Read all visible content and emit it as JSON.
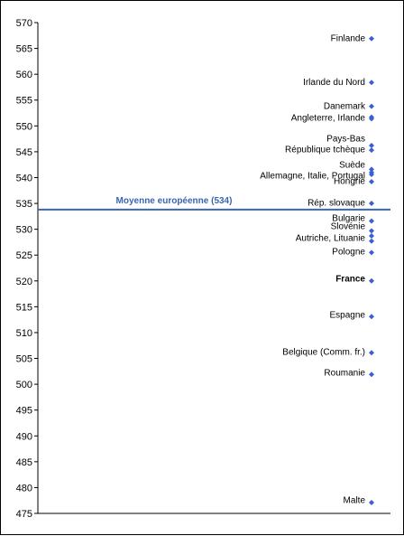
{
  "chart_data": {
    "type": "scatter",
    "title": "",
    "xlabel": "",
    "ylabel": "",
    "ylim": [
      475,
      570
    ],
    "ytick_step": 5,
    "grid": false,
    "colors": {
      "point": "#3b5fd6",
      "mean_line": "#3a64b4",
      "highlight": "#a8c8ec",
      "tick_text": "#000000"
    },
    "mean": {
      "label": "Moyenne européenne (534)",
      "value": 533.8
    },
    "points": [
      {
        "y": 566.9
      },
      {
        "y": 558.4
      },
      {
        "y": 553.8
      },
      {
        "y": 551.7
      },
      {
        "y": 551.4
      },
      {
        "y": 546.2
      },
      {
        "y": 545.3
      },
      {
        "y": 541.6
      },
      {
        "y": 541.0
      },
      {
        "y": 540.6
      },
      {
        "y": 539.2
      },
      {
        "y": 535.0
      },
      {
        "y": 531.6
      },
      {
        "y": 529.7
      },
      {
        "y": 528.7
      },
      {
        "y": 527.7
      },
      {
        "y": 525.5
      },
      {
        "y": 520.0,
        "highlight": true
      },
      {
        "y": 513.1
      },
      {
        "y": 506.1
      },
      {
        "y": 501.9
      },
      {
        "y": 477.1
      }
    ],
    "labels": [
      {
        "text": "Finlande",
        "y": 567.0
      },
      {
        "text": "Irlande du Nord",
        "y": 558.5
      },
      {
        "text": "Danemark",
        "y": 553.9
      },
      {
        "text": "Angleterre, Irlande",
        "y": 551.6
      },
      {
        "text": "Pays-Bas",
        "y": 547.6
      },
      {
        "text": "République tchèque",
        "y": 545.5
      },
      {
        "text": "Suède",
        "y": 542.5
      },
      {
        "text": "Allemagne, Italie,  Portugal",
        "y": 540.4
      },
      {
        "text": "Hongrie",
        "y": 539.4
      },
      {
        "text": "Rép. slovaque",
        "y": 535.2
      },
      {
        "text": "Bulgarie",
        "y": 532.2
      },
      {
        "text": "Slovénie",
        "y": 530.6
      },
      {
        "text": "Autriche, Lituanie",
        "y": 528.4
      },
      {
        "text": "Pologne",
        "y": 525.7
      },
      {
        "text": "France",
        "y": 520.5,
        "highlight": true
      },
      {
        "text": "Espagne",
        "y": 513.5
      },
      {
        "text": "Belgique (Comm.  fr.)",
        "y": 506.3
      },
      {
        "text": "Roumanie",
        "y": 502.3
      },
      {
        "text": "Malte",
        "y": 477.6
      }
    ]
  }
}
